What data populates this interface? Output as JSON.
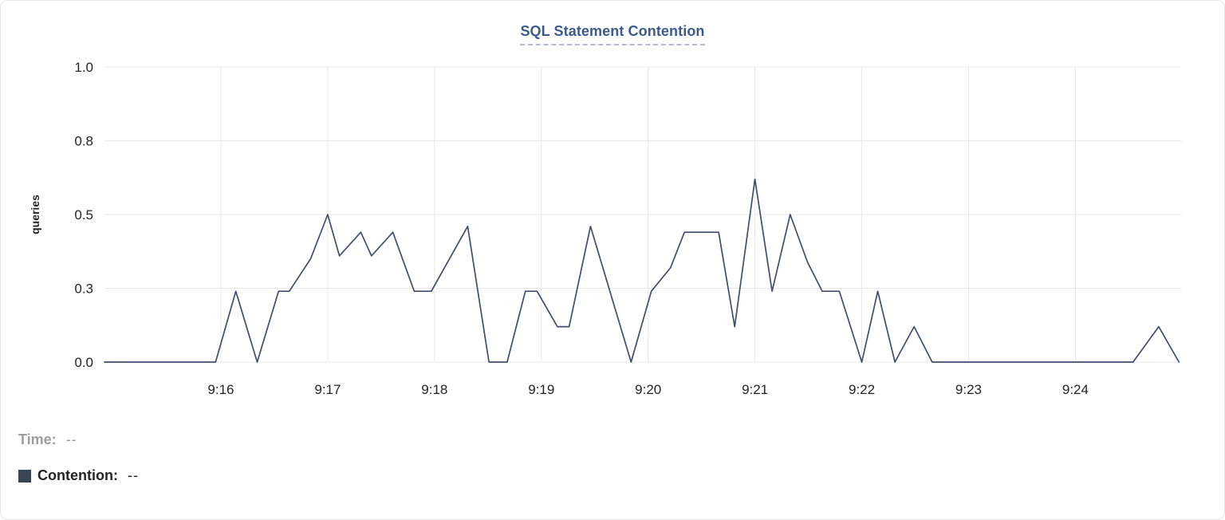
{
  "title": "SQL Statement Contention",
  "footer": {
    "time_label": "Time:",
    "time_value": "--",
    "contention_label": "Contention:",
    "contention_value": "--"
  },
  "colors": {
    "title": "#3b5a8d",
    "line": "#3f4e6b",
    "swatch": "#394455",
    "grid": "#e8e8ea",
    "tick_text": "#242424",
    "muted_text": "#9b9da1",
    "dark_text": "#242424"
  },
  "chart_data": {
    "type": "line",
    "title": "SQL Statement Contention",
    "xlabel": "",
    "ylabel": "queries",
    "grid": true,
    "legend_position": "bottom-left",
    "y_domain": [
      0,
      1
    ],
    "y_ticks": [
      {
        "value": 0,
        "label": "0.0"
      },
      {
        "value": 0.25,
        "label": "0.3"
      },
      {
        "value": 0.5,
        "label": "0.5"
      },
      {
        "value": 0.75,
        "label": "0.8"
      },
      {
        "value": 1,
        "label": "1.0"
      }
    ],
    "x_domain_minutes_after_9_15": [
      -0.09,
      9.99
    ],
    "x_ticks": [
      {
        "minute": 1,
        "label": "9:16"
      },
      {
        "minute": 2,
        "label": "9:17"
      },
      {
        "minute": 3,
        "label": "9:18"
      },
      {
        "minute": 4,
        "label": "9:19"
      },
      {
        "minute": 5,
        "label": "9:20"
      },
      {
        "minute": 6,
        "label": "9:21"
      },
      {
        "minute": 7,
        "label": "9:22"
      },
      {
        "minute": 8,
        "label": "9:23"
      },
      {
        "minute": 9,
        "label": "9:24"
      }
    ],
    "series": [
      {
        "name": "Contention",
        "unit": "queries",
        "points": [
          [
            -0.09,
            0
          ],
          [
            0.95,
            0
          ],
          [
            1.14,
            0.24
          ],
          [
            1.34,
            0
          ],
          [
            1.54,
            0.24
          ],
          [
            1.64,
            0.24
          ],
          [
            1.84,
            0.35
          ],
          [
            2.0,
            0.5
          ],
          [
            2.11,
            0.36
          ],
          [
            2.31,
            0.44
          ],
          [
            2.41,
            0.36
          ],
          [
            2.61,
            0.44
          ],
          [
            2.81,
            0.24
          ],
          [
            2.97,
            0.24
          ],
          [
            3.31,
            0.46
          ],
          [
            3.51,
            0
          ],
          [
            3.68,
            0
          ],
          [
            3.85,
            0.24
          ],
          [
            3.96,
            0.24
          ],
          [
            4.15,
            0.12
          ],
          [
            4.26,
            0.12
          ],
          [
            4.46,
            0.46
          ],
          [
            4.84,
            0
          ],
          [
            5.03,
            0.24
          ],
          [
            5.21,
            0.32
          ],
          [
            5.34,
            0.44
          ],
          [
            5.66,
            0.44
          ],
          [
            5.81,
            0.12
          ],
          [
            6.0,
            0.62
          ],
          [
            6.16,
            0.24
          ],
          [
            6.33,
            0.5
          ],
          [
            6.49,
            0.34
          ],
          [
            6.63,
            0.24
          ],
          [
            6.79,
            0.24
          ],
          [
            7.0,
            0
          ],
          [
            7.15,
            0.24
          ],
          [
            7.31,
            0
          ],
          [
            7.49,
            0.12
          ],
          [
            7.66,
            0
          ],
          [
            9.54,
            0
          ],
          [
            9.78,
            0.12
          ],
          [
            9.97,
            0
          ]
        ]
      }
    ]
  }
}
